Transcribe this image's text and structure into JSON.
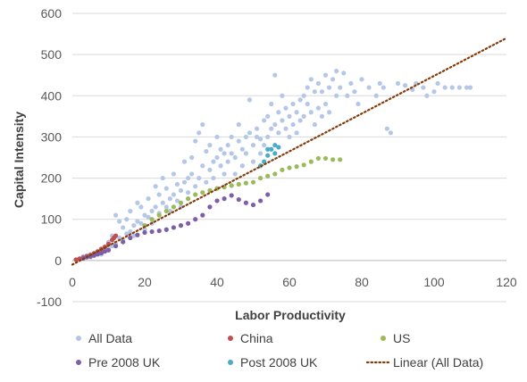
{
  "chart_data": {
    "type": "scatter",
    "title": "",
    "xlabel": "Labor Productivity",
    "ylabel": "Capital Intensity",
    "xlim": [
      0,
      120
    ],
    "ylim": [
      -100,
      600
    ],
    "xticks": [
      0,
      20,
      40,
      60,
      80,
      100,
      120
    ],
    "yticks": [
      -100,
      0,
      100,
      200,
      300,
      400,
      500,
      600
    ],
    "grid": "horizontal",
    "legend_position": "bottom",
    "series": [
      {
        "name": "All Data",
        "color": "#b4c7e7",
        "marker": "dot",
        "points": [
          [
            2,
            5
          ],
          [
            3,
            10
          ],
          [
            4,
            12
          ],
          [
            5,
            15
          ],
          [
            5,
            8
          ],
          [
            6,
            18
          ],
          [
            7,
            20
          ],
          [
            8,
            25
          ],
          [
            8,
            15
          ],
          [
            9,
            30
          ],
          [
            10,
            28
          ],
          [
            10,
            45
          ],
          [
            11,
            35
          ],
          [
            11,
            60
          ],
          [
            12,
            40
          ],
          [
            12,
            110
          ],
          [
            13,
            55
          ],
          [
            13,
            95
          ],
          [
            14,
            50
          ],
          [
            14,
            80
          ],
          [
            15,
            65
          ],
          [
            15,
            100
          ],
          [
            16,
            70
          ],
          [
            16,
            120
          ],
          [
            17,
            85
          ],
          [
            17,
            60
          ],
          [
            18,
            95
          ],
          [
            18,
            140
          ],
          [
            19,
            90
          ],
          [
            19,
            130
          ],
          [
            20,
            110
          ],
          [
            20,
            75
          ],
          [
            21,
            105
          ],
          [
            21,
            150
          ],
          [
            22,
            120
          ],
          [
            22,
            90
          ],
          [
            23,
            130
          ],
          [
            23,
            180
          ],
          [
            24,
            115
          ],
          [
            24,
            160
          ],
          [
            25,
            140
          ],
          [
            25,
            200
          ],
          [
            26,
            130
          ],
          [
            26,
            175
          ],
          [
            27,
            150
          ],
          [
            27,
            120
          ],
          [
            28,
            160
          ],
          [
            28,
            210
          ],
          [
            29,
            145
          ],
          [
            29,
            185
          ],
          [
            30,
            170
          ],
          [
            30,
            130
          ],
          [
            31,
            190
          ],
          [
            31,
            240
          ],
          [
            32,
            165
          ],
          [
            32,
            200
          ],
          [
            33,
            210
          ],
          [
            33,
            250
          ],
          [
            34,
            180
          ],
          [
            34,
            290
          ],
          [
            35,
            200
          ],
          [
            35,
            310
          ],
          [
            36,
            230
          ],
          [
            36,
            330
          ],
          [
            37,
            190
          ],
          [
            37,
            265
          ],
          [
            38,
            220
          ],
          [
            38,
            280
          ],
          [
            39,
            240
          ],
          [
            39,
            200
          ],
          [
            40,
            250
          ],
          [
            40,
            300
          ],
          [
            41,
            230
          ],
          [
            41,
            270
          ],
          [
            42,
            260
          ],
          [
            42,
            210
          ],
          [
            43,
            280
          ],
          [
            43,
            240
          ],
          [
            44,
            260
          ],
          [
            44,
            300
          ],
          [
            45,
            250
          ],
          [
            45,
            210
          ],
          [
            46,
            290
          ],
          [
            46,
            330
          ],
          [
            47,
            270
          ],
          [
            47,
            230
          ],
          [
            48,
            300
          ],
          [
            48,
            260
          ],
          [
            49,
            310
          ],
          [
            49,
            390
          ],
          [
            50,
            280
          ],
          [
            50,
            240
          ],
          [
            51,
            320
          ],
          [
            51,
            300
          ],
          [
            52,
            295
          ],
          [
            52,
            260
          ],
          [
            53,
            340
          ],
          [
            53,
            280
          ],
          [
            54,
            350
          ],
          [
            54,
            300
          ],
          [
            55,
            320
          ],
          [
            55,
            380
          ],
          [
            56,
            330
          ],
          [
            56,
            450
          ],
          [
            57,
            360
          ],
          [
            57,
            310
          ],
          [
            58,
            340
          ],
          [
            58,
            400
          ],
          [
            59,
            370
          ],
          [
            59,
            320
          ],
          [
            60,
            350
          ],
          [
            60,
            300
          ],
          [
            61,
            380
          ],
          [
            61,
            330
          ],
          [
            62,
            360
          ],
          [
            62,
            310
          ],
          [
            63,
            390
          ],
          [
            63,
            340
          ],
          [
            64,
            400
          ],
          [
            64,
            350
          ],
          [
            65,
            420
          ],
          [
            65,
            380
          ],
          [
            66,
            440
          ],
          [
            66,
            360
          ],
          [
            67,
            410
          ],
          [
            67,
            330
          ],
          [
            68,
            430
          ],
          [
            68,
            370
          ],
          [
            69,
            410
          ],
          [
            69,
            350
          ],
          [
            70,
            450
          ],
          [
            70,
            380
          ],
          [
            71,
            420
          ],
          [
            71,
            360
          ],
          [
            72,
            440
          ],
          [
            73,
            460
          ],
          [
            73,
            400
          ],
          [
            74,
            420
          ],
          [
            75,
            455
          ],
          [
            76,
            400
          ],
          [
            77,
            430
          ],
          [
            78,
            410
          ],
          [
            79,
            380
          ],
          [
            80,
            440
          ],
          [
            82,
            420
          ],
          [
            84,
            400
          ],
          [
            85,
            430
          ],
          [
            86,
            420
          ],
          [
            87,
            320
          ],
          [
            88,
            310
          ],
          [
            90,
            430
          ],
          [
            92,
            425
          ],
          [
            94,
            415
          ],
          [
            95,
            430
          ],
          [
            97,
            420
          ],
          [
            98,
            400
          ],
          [
            100,
            410
          ],
          [
            101,
            430
          ],
          [
            103,
            420
          ],
          [
            105,
            420
          ],
          [
            107,
            420
          ],
          [
            109,
            420
          ],
          [
            110,
            420
          ]
        ]
      },
      {
        "name": "China",
        "color": "#c0504d",
        "marker": "dot",
        "points": [
          [
            1,
            2
          ],
          [
            2,
            4
          ],
          [
            3,
            7
          ],
          [
            4,
            10
          ],
          [
            5,
            13
          ],
          [
            6,
            17
          ],
          [
            7,
            22
          ],
          [
            8,
            28
          ],
          [
            9,
            33
          ],
          [
            10,
            40
          ],
          [
            11,
            50
          ],
          [
            11.5,
            55
          ],
          [
            12,
            60
          ]
        ]
      },
      {
        "name": "US",
        "color": "#9bbb59",
        "marker": "dot",
        "points": [
          [
            20,
            85
          ],
          [
            22,
            100
          ],
          [
            24,
            110
          ],
          [
            26,
            120
          ],
          [
            28,
            130
          ],
          [
            30,
            140
          ],
          [
            32,
            150
          ],
          [
            34,
            160
          ],
          [
            36,
            165
          ],
          [
            38,
            170
          ],
          [
            40,
            175
          ],
          [
            42,
            178
          ],
          [
            44,
            182
          ],
          [
            46,
            185
          ],
          [
            48,
            188
          ],
          [
            50,
            190
          ],
          [
            52,
            200
          ],
          [
            54,
            205
          ],
          [
            56,
            210
          ],
          [
            58,
            220
          ],
          [
            60,
            225
          ],
          [
            62,
            228
          ],
          [
            64,
            232
          ],
          [
            66,
            240
          ],
          [
            68,
            248
          ],
          [
            70,
            248
          ],
          [
            72,
            245
          ],
          [
            74,
            245
          ]
        ]
      },
      {
        "name": "Pre 2008 UK",
        "color": "#7f5ea8",
        "marker": "dot",
        "points": [
          [
            3,
            5
          ],
          [
            4,
            8
          ],
          [
            5,
            10
          ],
          [
            6,
            12
          ],
          [
            7,
            15
          ],
          [
            8,
            18
          ],
          [
            9,
            22
          ],
          [
            10,
            25
          ],
          [
            12,
            35
          ],
          [
            14,
            45
          ],
          [
            16,
            55
          ],
          [
            18,
            62
          ],
          [
            20,
            68
          ],
          [
            22,
            70
          ],
          [
            24,
            72
          ],
          [
            26,
            75
          ],
          [
            28,
            80
          ],
          [
            30,
            85
          ],
          [
            32,
            90
          ],
          [
            34,
            100
          ],
          [
            36,
            110
          ],
          [
            38,
            130
          ],
          [
            40,
            145
          ],
          [
            42,
            150
          ],
          [
            44,
            158
          ],
          [
            46,
            148
          ],
          [
            48,
            140
          ],
          [
            50,
            135
          ],
          [
            52,
            145
          ],
          [
            54,
            160
          ]
        ]
      },
      {
        "name": "Post 2008 UK",
        "color": "#4bacc6",
        "marker": "dot",
        "points": [
          [
            52,
            230
          ],
          [
            53,
            240
          ],
          [
            54,
            255
          ],
          [
            55,
            270
          ],
          [
            56,
            260
          ],
          [
            57,
            275
          ],
          [
            56,
            280
          ],
          [
            54,
            270
          ]
        ]
      },
      {
        "name": "Linear (All Data)",
        "color": "#843c0c",
        "marker": "dotted-line",
        "points": [
          [
            0,
            -10
          ],
          [
            120,
            540
          ]
        ]
      }
    ]
  },
  "legend": {
    "items": [
      {
        "label": "All Data",
        "color": "#b4c7e7",
        "type": "dot"
      },
      {
        "label": "China",
        "color": "#c0504d",
        "type": "dot"
      },
      {
        "label": "US",
        "color": "#9bbb59",
        "type": "dot"
      },
      {
        "label": "Pre 2008 UK",
        "color": "#7f5ea8",
        "type": "dot"
      },
      {
        "label": "Post 2008 UK",
        "color": "#4bacc6",
        "type": "dot"
      },
      {
        "label": "Linear (All Data)",
        "color": "#843c0c",
        "type": "line"
      }
    ]
  }
}
